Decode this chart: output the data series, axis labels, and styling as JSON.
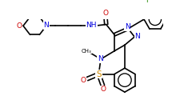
{
  "bg_color": "#ffffff",
  "line_color": "#000000",
  "bond_lw": 1.2,
  "font_size": 6.5,
  "fig_width": 2.2,
  "fig_height": 1.35,
  "dpi": 100,
  "xlim": [
    0,
    11.0
  ],
  "ylim": [
    0,
    6.5
  ],
  "N_color": "#0000dd",
  "O_color": "#cc0000",
  "S_color": "#cc8800",
  "F_color": "#228800",
  "C_color": "#000000"
}
